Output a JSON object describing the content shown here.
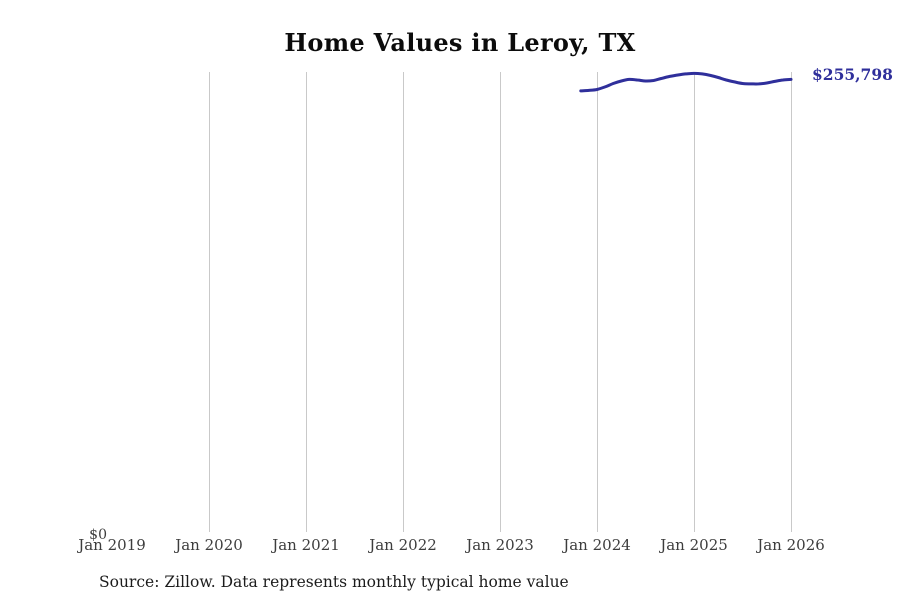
{
  "header": {
    "title": "Home Values in Leroy, TX"
  },
  "chart_data": {
    "type": "line",
    "title": "Home Values in Leroy, TX",
    "x_tick_labels": [
      "Jan 2019",
      "Jan 2020",
      "Jan 2021",
      "Jan 2022",
      "Jan 2023",
      "Jan 2024",
      "Jan 2025",
      "Jan 2026"
    ],
    "gridlines": "vertical only, at each January from 2020 through 2026",
    "legend": "none",
    "ylim": [
      0,
      260000
    ],
    "y_zero_label": "$0",
    "end_value": 255798,
    "end_value_label": "$255,798",
    "colors": {
      "line": "#2f2f9b",
      "end_label": "#2f2f9b",
      "gridline": "#c9c9c9",
      "tick_label": "#3d3d3d",
      "title": "#0c0c0c"
    },
    "series": [
      {
        "name": "Monthly typical home value",
        "months": [
          "Nov 2023",
          "Dec 2023",
          "Jan 2024",
          "Feb 2024",
          "Mar 2024",
          "Apr 2024",
          "May 2024",
          "Jun 2024",
          "Jul 2024",
          "Aug 2024",
          "Sep 2024",
          "Oct 2024",
          "Nov 2024",
          "Dec 2024",
          "Jan 2025",
          "Feb 2025",
          "Mar 2025",
          "Apr 2025",
          "May 2025",
          "Jun 2025",
          "Jul 2025",
          "Aug 2025",
          "Sep 2025",
          "Oct 2025",
          "Nov 2025",
          "Dec 2025",
          "Jan 2026"
        ],
        "values": [
          249300,
          249600,
          250100,
          251600,
          253500,
          254900,
          255800,
          255500,
          254900,
          255200,
          256400,
          257500,
          258300,
          258900,
          259200,
          258900,
          258100,
          256900,
          255500,
          254400,
          253500,
          253300,
          253300,
          253800,
          254700,
          255500,
          255798
        ]
      }
    ]
  },
  "footer": {
    "source_note": "Source: Zillow. Data represents monthly typical home value"
  }
}
